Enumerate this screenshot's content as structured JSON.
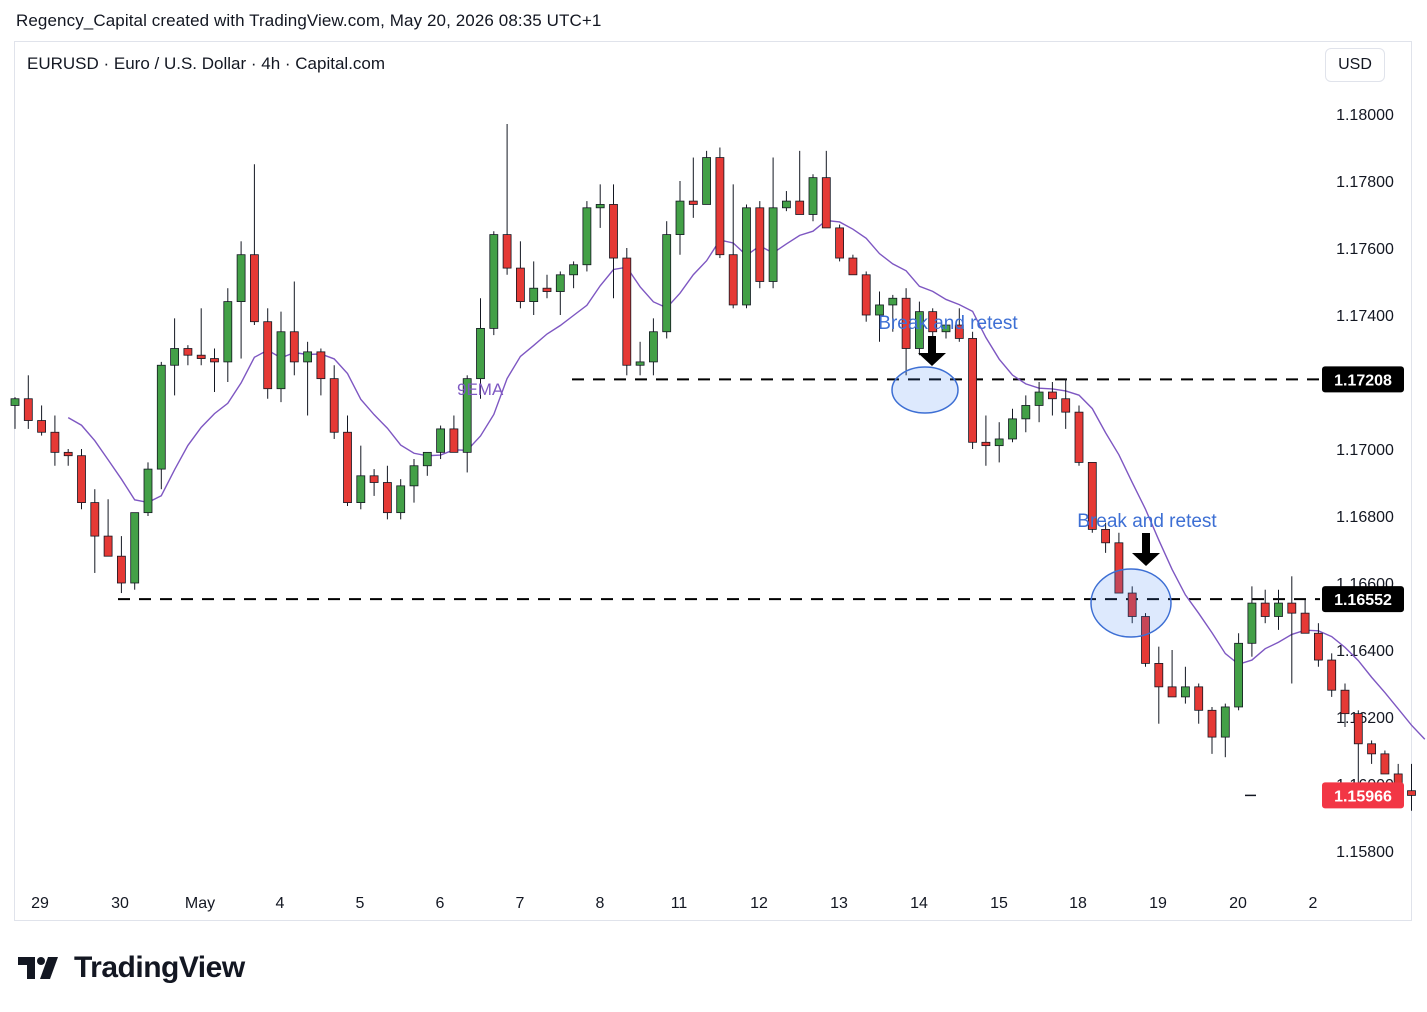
{
  "header": {
    "title": "Regency_Capital created with TradingView.com, May 20, 2026 08:35 UTC+1"
  },
  "chart": {
    "symbol": "EURUSD · Euro / U.S. Dollar · 4h · Capital.com",
    "currency": "USD"
  },
  "brand": {
    "name": "TradingView",
    "logo_icon": "tradingview-logo-icon"
  },
  "colors": {
    "up": "#43a047",
    "down": "#e53935",
    "ema": "#7e57c2",
    "annotation": "#3d6fd4",
    "last_price": "#f23645",
    "level_label": "#000000"
  },
  "chart_data": {
    "type": "candlestick",
    "title": "",
    "y_ticks": [
      "1.18000",
      "1.17800",
      "1.17600",
      "1.17400",
      "1.17200",
      "1.17000",
      "1.16800",
      "1.16600",
      "1.16400",
      "1.16200",
      "1.16000",
      "1.15800"
    ],
    "ylim": [
      1.1568,
      1.1824
    ],
    "x_ticks": [
      "29",
      "30",
      "May",
      "4",
      "5",
      "6",
      "7",
      "8",
      "11",
      "12",
      "13",
      "14",
      "15",
      "18",
      "19",
      "20",
      "2"
    ],
    "ema_label": "9EMA",
    "levels": [
      {
        "price": 1.17208,
        "label": "1.17208"
      },
      {
        "price": 1.16552,
        "label": "1.16552"
      }
    ],
    "last_price": {
      "price": 1.15966,
      "label": "1.15966"
    },
    "annotations": [
      {
        "text": "Break and retest",
        "candle_index": 82
      },
      {
        "text": "Break and retest",
        "candle_index": 97
      }
    ],
    "candles": [
      [
        1.1713,
        1.17155,
        1.1706,
        1.1715
      ],
      [
        1.1715,
        1.1722,
        1.1706,
        1.17085
      ],
      [
        1.17085,
        1.1713,
        1.1704,
        1.1705
      ],
      [
        1.1705,
        1.171,
        1.1695,
        1.1699
      ],
      [
        1.1699,
        1.17,
        1.1695,
        1.1698
      ],
      [
        1.1698,
        1.17,
        1.1682,
        1.1684
      ],
      [
        1.1684,
        1.1688,
        1.1663,
        1.1674
      ],
      [
        1.1674,
        1.1685,
        1.1668,
        1.1668
      ],
      [
        1.1668,
        1.1674,
        1.1657,
        1.166
      ],
      [
        1.166,
        1.1681,
        1.1658,
        1.1681
      ],
      [
        1.1681,
        1.1696,
        1.168,
        1.1694
      ],
      [
        1.1694,
        1.1726,
        1.1688,
        1.1725
      ],
      [
        1.1725,
        1.1739,
        1.1716,
        1.173
      ],
      [
        1.173,
        1.1731,
        1.1725,
        1.1728
      ],
      [
        1.1728,
        1.1742,
        1.1725,
        1.1727
      ],
      [
        1.1727,
        1.173,
        1.1717,
        1.1726
      ],
      [
        1.1726,
        1.1748,
        1.172,
        1.1744
      ],
      [
        1.1744,
        1.1762,
        1.1727,
        1.1758
      ],
      [
        1.1758,
        1.1785,
        1.1737,
        1.1738
      ],
      [
        1.1738,
        1.1742,
        1.1715,
        1.1718
      ],
      [
        1.1718,
        1.1741,
        1.1714,
        1.1735
      ],
      [
        1.1735,
        1.175,
        1.1722,
        1.1726
      ],
      [
        1.1726,
        1.1732,
        1.171,
        1.1729
      ],
      [
        1.1729,
        1.173,
        1.1716,
        1.1721
      ],
      [
        1.1721,
        1.1725,
        1.1703,
        1.1705
      ],
      [
        1.1705,
        1.171,
        1.1683,
        1.1684
      ],
      [
        1.1684,
        1.1701,
        1.1682,
        1.1692
      ],
      [
        1.1692,
        1.1694,
        1.1686,
        1.169
      ],
      [
        1.169,
        1.1695,
        1.1679,
        1.1681
      ],
      [
        1.1681,
        1.1691,
        1.1679,
        1.1689
      ],
      [
        1.1689,
        1.1697,
        1.1684,
        1.1695
      ],
      [
        1.1695,
        1.1699,
        1.1692,
        1.1699
      ],
      [
        1.1699,
        1.1707,
        1.1697,
        1.1706
      ],
      [
        1.1706,
        1.171,
        1.1699,
        1.1699
      ],
      [
        1.1699,
        1.1722,
        1.1693,
        1.1721
      ],
      [
        1.1721,
        1.1745,
        1.1715,
        1.1736
      ],
      [
        1.1736,
        1.1765,
        1.1734,
        1.1764
      ],
      [
        1.1764,
        1.1797,
        1.1752,
        1.1754
      ],
      [
        1.1754,
        1.1762,
        1.1742,
        1.1744
      ],
      [
        1.1744,
        1.1756,
        1.174,
        1.1748
      ],
      [
        1.1748,
        1.1752,
        1.1745,
        1.1747
      ],
      [
        1.1747,
        1.1753,
        1.174,
        1.1752
      ],
      [
        1.1752,
        1.1756,
        1.1748,
        1.1755
      ],
      [
        1.1755,
        1.1774,
        1.1753,
        1.1772
      ],
      [
        1.1772,
        1.1779,
        1.1766,
        1.1773
      ],
      [
        1.1773,
        1.1779,
        1.1745,
        1.1757
      ],
      [
        1.1757,
        1.176,
        1.1722,
        1.1725
      ],
      [
        1.1725,
        1.1732,
        1.1722,
        1.1726
      ],
      [
        1.1726,
        1.1739,
        1.1722,
        1.1735
      ],
      [
        1.1735,
        1.1768,
        1.1733,
        1.1764
      ],
      [
        1.1764,
        1.178,
        1.1758,
        1.1774
      ],
      [
        1.1774,
        1.1787,
        1.1769,
        1.1773
      ],
      [
        1.1773,
        1.1789,
        1.1773,
        1.1787
      ],
      [
        1.1787,
        1.179,
        1.1757,
        1.1758
      ],
      [
        1.1758,
        1.1779,
        1.1742,
        1.1743
      ],
      [
        1.1743,
        1.1773,
        1.1742,
        1.1772
      ],
      [
        1.1772,
        1.1774,
        1.1748,
        1.175
      ],
      [
        1.175,
        1.1787,
        1.1748,
        1.1772
      ],
      [
        1.1772,
        1.1777,
        1.1771,
        1.1774
      ],
      [
        1.1774,
        1.1789,
        1.177,
        1.177
      ],
      [
        1.177,
        1.1782,
        1.1768,
        1.1781
      ],
      [
        1.1781,
        1.1789,
        1.1766,
        1.1766
      ],
      [
        1.1766,
        1.1767,
        1.1756,
        1.1757
      ],
      [
        1.1757,
        1.1758,
        1.1752,
        1.1752
      ],
      [
        1.1752,
        1.1753,
        1.1738,
        1.174
      ],
      [
        1.174,
        1.1747,
        1.1732,
        1.1743
      ],
      [
        1.1743,
        1.1746,
        1.1735,
        1.1745
      ],
      [
        1.1745,
        1.1748,
        1.1722,
        1.173
      ],
      [
        1.173,
        1.1744,
        1.1728,
        1.1741
      ],
      [
        1.1741,
        1.1742,
        1.1732,
        1.1735
      ],
      [
        1.1735,
        1.1738,
        1.1733,
        1.1737
      ],
      [
        1.1737,
        1.1742,
        1.1732,
        1.1733
      ],
      [
        1.1733,
        1.1735,
        1.17,
        1.1702
      ],
      [
        1.1702,
        1.171,
        1.1695,
        1.1701
      ],
      [
        1.1701,
        1.1708,
        1.1696,
        1.1703
      ],
      [
        1.1703,
        1.1712,
        1.1702,
        1.1709
      ],
      [
        1.1709,
        1.1716,
        1.1705,
        1.1713
      ],
      [
        1.1713,
        1.172,
        1.1708,
        1.1717
      ],
      [
        1.1717,
        1.172,
        1.171,
        1.1715
      ],
      [
        1.1715,
        1.1721,
        1.1706,
        1.1711
      ],
      [
        1.1711,
        1.1713,
        1.1695,
        1.1696
      ],
      [
        1.1696,
        1.1696,
        1.1675,
        1.1676
      ],
      [
        1.1676,
        1.1678,
        1.1669,
        1.1672
      ],
      [
        1.1672,
        1.1675,
        1.1659,
        1.1657
      ],
      [
        1.1657,
        1.1659,
        1.1648,
        1.165
      ],
      [
        1.165,
        1.1651,
        1.1635,
        1.1636
      ],
      [
        1.1636,
        1.1641,
        1.1618,
        1.1629
      ],
      [
        1.1629,
        1.164,
        1.1626,
        1.1626
      ],
      [
        1.1626,
        1.1635,
        1.1624,
        1.1629
      ],
      [
        1.1629,
        1.163,
        1.1618,
        1.1622
      ],
      [
        1.1622,
        1.1623,
        1.1609,
        1.1614
      ],
      [
        1.1614,
        1.1624,
        1.1608,
        1.1623
      ],
      [
        1.1623,
        1.1645,
        1.1622,
        1.1642
      ],
      [
        1.1642,
        1.1659,
        1.1638,
        1.1654
      ],
      [
        1.1654,
        1.1658,
        1.1648,
        1.165
      ],
      [
        1.165,
        1.1658,
        1.1646,
        1.1654
      ],
      [
        1.1654,
        1.1662,
        1.163,
        1.1651
      ],
      [
        1.1651,
        1.1655,
        1.1647,
        1.1645
      ],
      [
        1.1645,
        1.1648,
        1.1635,
        1.1637
      ],
      [
        1.1637,
        1.1639,
        1.1626,
        1.1628
      ],
      [
        1.1628,
        1.163,
        1.1617,
        1.1621
      ],
      [
        1.1621,
        1.1622,
        1.1593,
        1.1612
      ],
      [
        1.1612,
        1.1613,
        1.1606,
        1.1609
      ],
      [
        1.1609,
        1.161,
        1.1604,
        1.1603
      ],
      [
        1.1603,
        1.1606,
        1.1594,
        1.1598
      ],
      [
        1.1598,
        1.1606,
        1.1592,
        1.15966
      ]
    ]
  }
}
